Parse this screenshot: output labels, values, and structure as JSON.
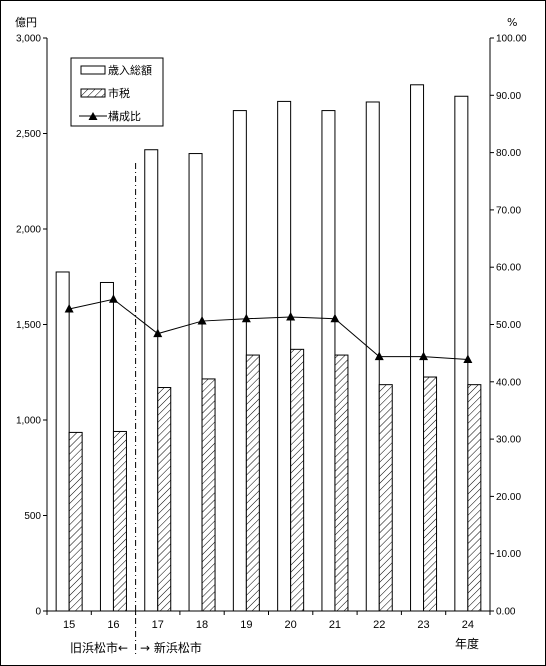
{
  "chart_data": {
    "type": "bar",
    "categories": [
      "15",
      "16",
      "17",
      "18",
      "19",
      "20",
      "21",
      "22",
      "23",
      "24"
    ],
    "series": [
      {
        "name": "歳入総額",
        "type": "bar",
        "axis": "left",
        "pattern": "white",
        "values": [
          1775,
          1720,
          2415,
          2395,
          2620,
          2668,
          2620,
          2665,
          2755,
          2695
        ]
      },
      {
        "name": "市税",
        "type": "bar",
        "axis": "left",
        "pattern": "hatch",
        "values": [
          935,
          940,
          1170,
          1215,
          1340,
          1370,
          1340,
          1185,
          1225,
          1185
        ]
      },
      {
        "name": "構成比",
        "type": "line",
        "axis": "right",
        "marker": "triangle",
        "values": [
          52.7,
          54.4,
          48.4,
          50.6,
          51.0,
          51.3,
          51.0,
          44.4,
          44.4,
          43.9
        ]
      }
    ],
    "y_left": {
      "unit": "億円",
      "min": 0,
      "max": 3000,
      "ticks": [
        0,
        500,
        1000,
        1500,
        2000,
        2500,
        3000
      ],
      "tick_labels": [
        "0",
        "500",
        "1,000",
        "1,500",
        "2,000",
        "2,500",
        "3,000"
      ]
    },
    "y_right": {
      "unit": "%",
      "min": 0,
      "max": 100,
      "ticks": [
        0,
        10,
        20,
        30,
        40,
        50,
        60,
        70,
        80,
        90,
        100
      ],
      "tick_labels": [
        "0.00",
        "10.00",
        "20.00",
        "30.00",
        "40.00",
        "50.00",
        "60.00",
        "70.00",
        "80.00",
        "90.00",
        "100.00"
      ]
    },
    "xlabel": "年度",
    "divider": {
      "after_index": 1,
      "left_label": "旧浜松市←",
      "right_label": "→ 新浜松市"
    },
    "legend": {
      "placement": "top-left"
    },
    "grid": false
  }
}
